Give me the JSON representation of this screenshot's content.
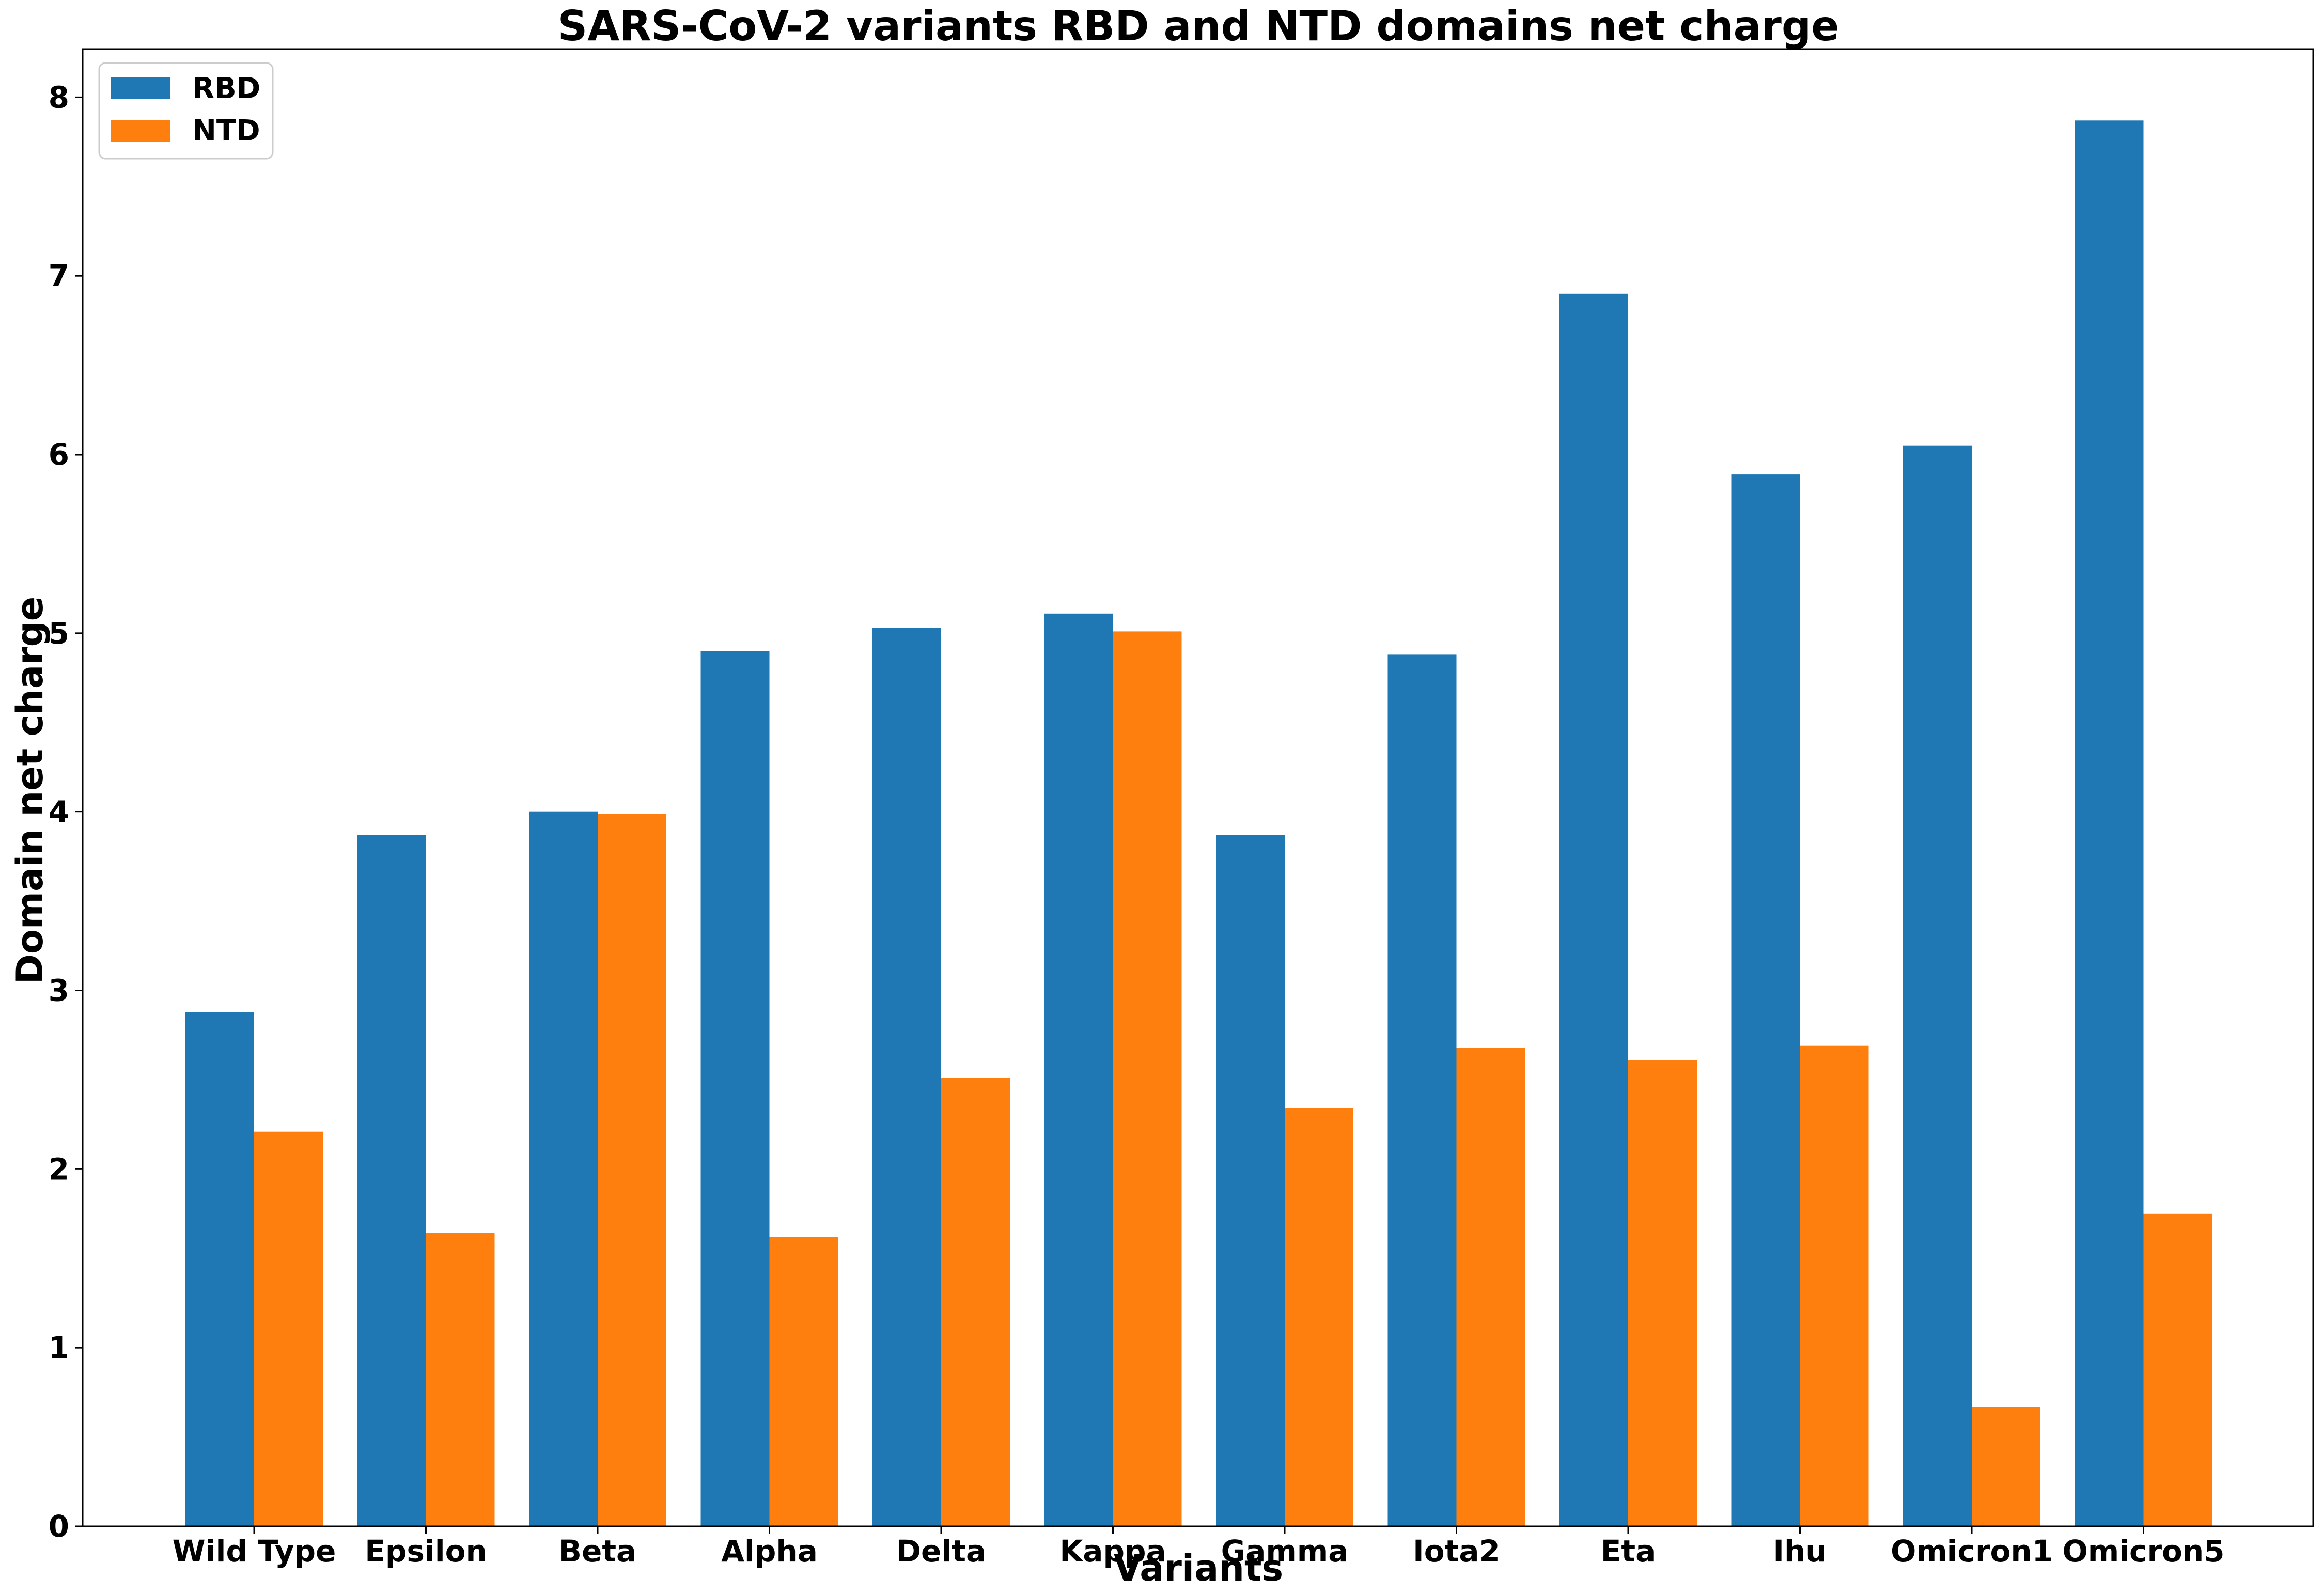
{
  "chart_data": {
    "type": "bar",
    "title": "SARS-CoV-2 variants RBD and NTD domains net charge",
    "xlabel": "Variants",
    "ylabel": "Domain net charge",
    "categories": [
      "Wild Type",
      "Epsilon",
      "Beta",
      "Alpha",
      "Delta",
      "Kappa",
      "Gamma",
      "Iota2",
      "Eta",
      "Ihu",
      "Omicron1",
      "Omicron5"
    ],
    "series": [
      {
        "name": "RBD",
        "color": "#1f77b4",
        "values": [
          2.88,
          3.87,
          4.0,
          4.9,
          5.03,
          5.11,
          3.87,
          4.88,
          6.9,
          5.89,
          6.05,
          7.87
        ]
      },
      {
        "name": "NTD",
        "color": "#ff7f0e",
        "values": [
          2.21,
          1.64,
          3.99,
          1.62,
          2.51,
          5.01,
          2.34,
          2.68,
          2.61,
          2.69,
          0.67,
          1.75
        ]
      }
    ],
    "yticks": [
      "0",
      "1",
      "2",
      "3",
      "4",
      "5",
      "6",
      "7",
      "8"
    ],
    "ylim": [
      0,
      8.27
    ],
    "grid": false,
    "legend_position": "top-left"
  }
}
